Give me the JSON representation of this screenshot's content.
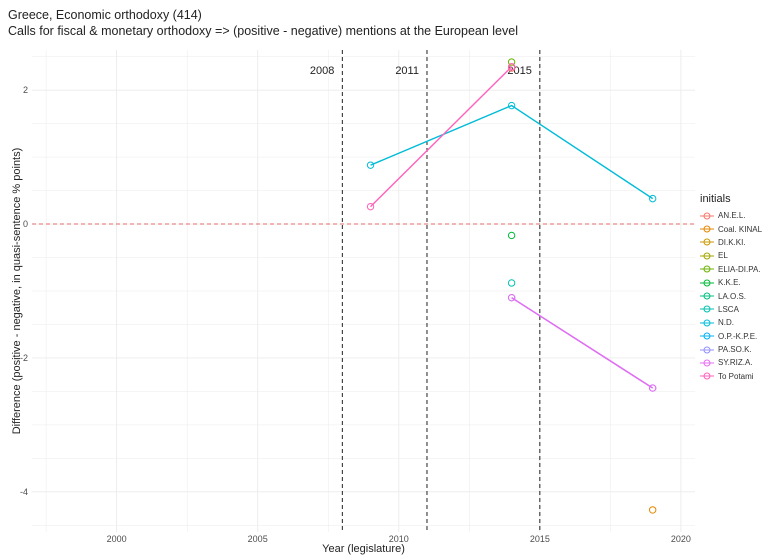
{
  "title_line1": "Greece, Economic orthodoxy (414)",
  "title_line2": "Calls for fiscal & monetary orthodoxy => (positive - negative) mentions at the European level",
  "chart_data": {
    "type": "scatter",
    "xlabel": "Year (legislature)",
    "ylabel": "Difference (positive - negative, in quasi-sentence % points)",
    "xlim": [
      1997,
      2020.5
    ],
    "ylim": [
      -4.6,
      2.6
    ],
    "x_ticks": [
      2000,
      2005,
      2010,
      2015,
      2020
    ],
    "y_ticks": [
      2,
      0,
      -2,
      -4
    ],
    "grid": true,
    "reference_lines": {
      "horizontal": {
        "y": 0,
        "style": "dashed",
        "color": "#e06b6b"
      },
      "vertical": [
        {
          "x": 2008,
          "label": "2008"
        },
        {
          "x": 2011,
          "label": "2011"
        },
        {
          "x": 2015,
          "label": "2015"
        }
      ]
    },
    "legend_title": "initials",
    "legend_position": "right",
    "series": [
      {
        "name": "AN.E.L.",
        "color": "#F8766D",
        "points": [
          [
            2014,
            2.33
          ]
        ]
      },
      {
        "name": "Coal. KINAL",
        "color": "#E58700",
        "points": [
          [
            2019,
            -4.27
          ]
        ]
      },
      {
        "name": "DI.K.KI.",
        "color": "#C99800",
        "points": []
      },
      {
        "name": "EL",
        "color": "#A3A500",
        "points": []
      },
      {
        "name": "ELIA-DI.PA.",
        "color": "#6BB100",
        "points": [
          [
            2014,
            2.42
          ]
        ]
      },
      {
        "name": "K.K.E.",
        "color": "#00BA38",
        "points": [
          [
            2014,
            -0.17
          ]
        ]
      },
      {
        "name": "LA.O.S.",
        "color": "#00BF7D",
        "points": []
      },
      {
        "name": "LSCA",
        "color": "#00C0AF",
        "points": [
          [
            2014,
            -0.88
          ]
        ]
      },
      {
        "name": "N.D.",
        "color": "#00BCD8",
        "points": [
          [
            2009,
            0.88
          ],
          [
            2014,
            1.77
          ],
          [
            2019,
            0.38
          ]
        ]
      },
      {
        "name": "O.P.-K.P.E.",
        "color": "#00B0F6",
        "points": []
      },
      {
        "name": "PA.SO.K.",
        "color": "#9590FF",
        "points": [
          [
            2014,
            -1.1
          ],
          [
            2019,
            -2.45
          ]
        ]
      },
      {
        "name": "SY.RIZ.A.",
        "color": "#E76BF3",
        "points": [
          [
            2014,
            -1.1
          ],
          [
            2019,
            -2.45
          ]
        ]
      },
      {
        "name": "To Potami",
        "color": "#FF62BC",
        "points": [
          [
            2009,
            0.26
          ],
          [
            2014,
            2.35
          ]
        ]
      }
    ]
  }
}
